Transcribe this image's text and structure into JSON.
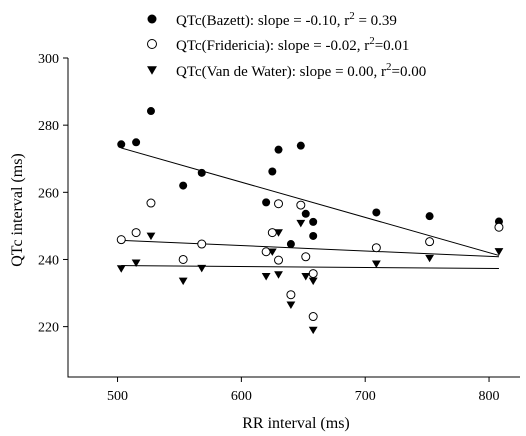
{
  "chart_data": {
    "type": "scatter",
    "title": "",
    "xlabel": "RR interval (ms)",
    "ylabel": "QTc interval (ms)",
    "xlim": [
      460,
      825
    ],
    "ylim": [
      205,
      300
    ],
    "xticks": [
      500,
      600,
      700,
      800
    ],
    "yticks": [
      220,
      240,
      260,
      280,
      300
    ],
    "grid": false,
    "legend_placement": "top",
    "series": [
      {
        "name": "QTc(Bazett): slope = -0.10, r",
        "name_sup": "2",
        "name_suffix": " = 0.39",
        "marker": "filled-circle",
        "color": "#000000",
        "points": [
          {
            "x": 503,
            "y": 274.3
          },
          {
            "x": 515,
            "y": 274.9
          },
          {
            "x": 527,
            "y": 284.2
          },
          {
            "x": 553,
            "y": 262.0
          },
          {
            "x": 568,
            "y": 265.8
          },
          {
            "x": 620,
            "y": 257.0
          },
          {
            "x": 625,
            "y": 266.2
          },
          {
            "x": 630,
            "y": 272.7
          },
          {
            "x": 630,
            "y": 256.6
          },
          {
            "x": 640,
            "y": 244.6
          },
          {
            "x": 648,
            "y": 273.9
          },
          {
            "x": 652,
            "y": 253.6
          },
          {
            "x": 658,
            "y": 247.0
          },
          {
            "x": 658,
            "y": 251.2
          },
          {
            "x": 709,
            "y": 254.0
          },
          {
            "x": 752,
            "y": 252.9
          },
          {
            "x": 808,
            "y": 251.3
          }
        ],
        "fit": {
          "x": [
            503,
            808
          ],
          "y": [
            273.2,
            241.2
          ]
        }
      },
      {
        "name": "QTc(Fridericia): slope = -0.02, r",
        "name_sup": "2",
        "name_suffix": "=0.01",
        "marker": "open-circle",
        "color": "#000000",
        "points": [
          {
            "x": 503,
            "y": 245.9
          },
          {
            "x": 515,
            "y": 248.0
          },
          {
            "x": 527,
            "y": 256.8
          },
          {
            "x": 553,
            "y": 240.0
          },
          {
            "x": 568,
            "y": 244.6
          },
          {
            "x": 620,
            "y": 242.3
          },
          {
            "x": 625,
            "y": 248.0
          },
          {
            "x": 630,
            "y": 256.6
          },
          {
            "x": 630,
            "y": 239.8
          },
          {
            "x": 640,
            "y": 229.5
          },
          {
            "x": 648,
            "y": 256.2
          },
          {
            "x": 652,
            "y": 240.8
          },
          {
            "x": 658,
            "y": 235.8
          },
          {
            "x": 658,
            "y": 223.0
          },
          {
            "x": 709,
            "y": 243.5
          },
          {
            "x": 752,
            "y": 245.3
          },
          {
            "x": 808,
            "y": 249.6
          }
        ],
        "fit": {
          "x": [
            503,
            808
          ],
          "y": [
            245.7,
            240.8
          ]
        }
      },
      {
        "name": "QTc(Van de Water): slope = 0.00, r",
        "name_sup": "2",
        "name_suffix": "=0.00",
        "marker": "filled-triangle-down",
        "color": "#000000",
        "points": [
          {
            "x": 503,
            "y": 237.3
          },
          {
            "x": 515,
            "y": 239.0
          },
          {
            "x": 527,
            "y": 247.0
          },
          {
            "x": 553,
            "y": 233.6
          },
          {
            "x": 568,
            "y": 237.4
          },
          {
            "x": 620,
            "y": 235.0
          },
          {
            "x": 625,
            "y": 242.3
          },
          {
            "x": 630,
            "y": 248.0
          },
          {
            "x": 630,
            "y": 235.5
          },
          {
            "x": 640,
            "y": 226.5
          },
          {
            "x": 648,
            "y": 250.8
          },
          {
            "x": 652,
            "y": 235.0
          },
          {
            "x": 658,
            "y": 233.6
          },
          {
            "x": 658,
            "y": 219.0
          },
          {
            "x": 709,
            "y": 238.7
          },
          {
            "x": 752,
            "y": 240.4
          },
          {
            "x": 808,
            "y": 242.4
          }
        ],
        "fit": {
          "x": [
            503,
            808
          ],
          "y": [
            238.2,
            237.3
          ]
        }
      }
    ]
  }
}
